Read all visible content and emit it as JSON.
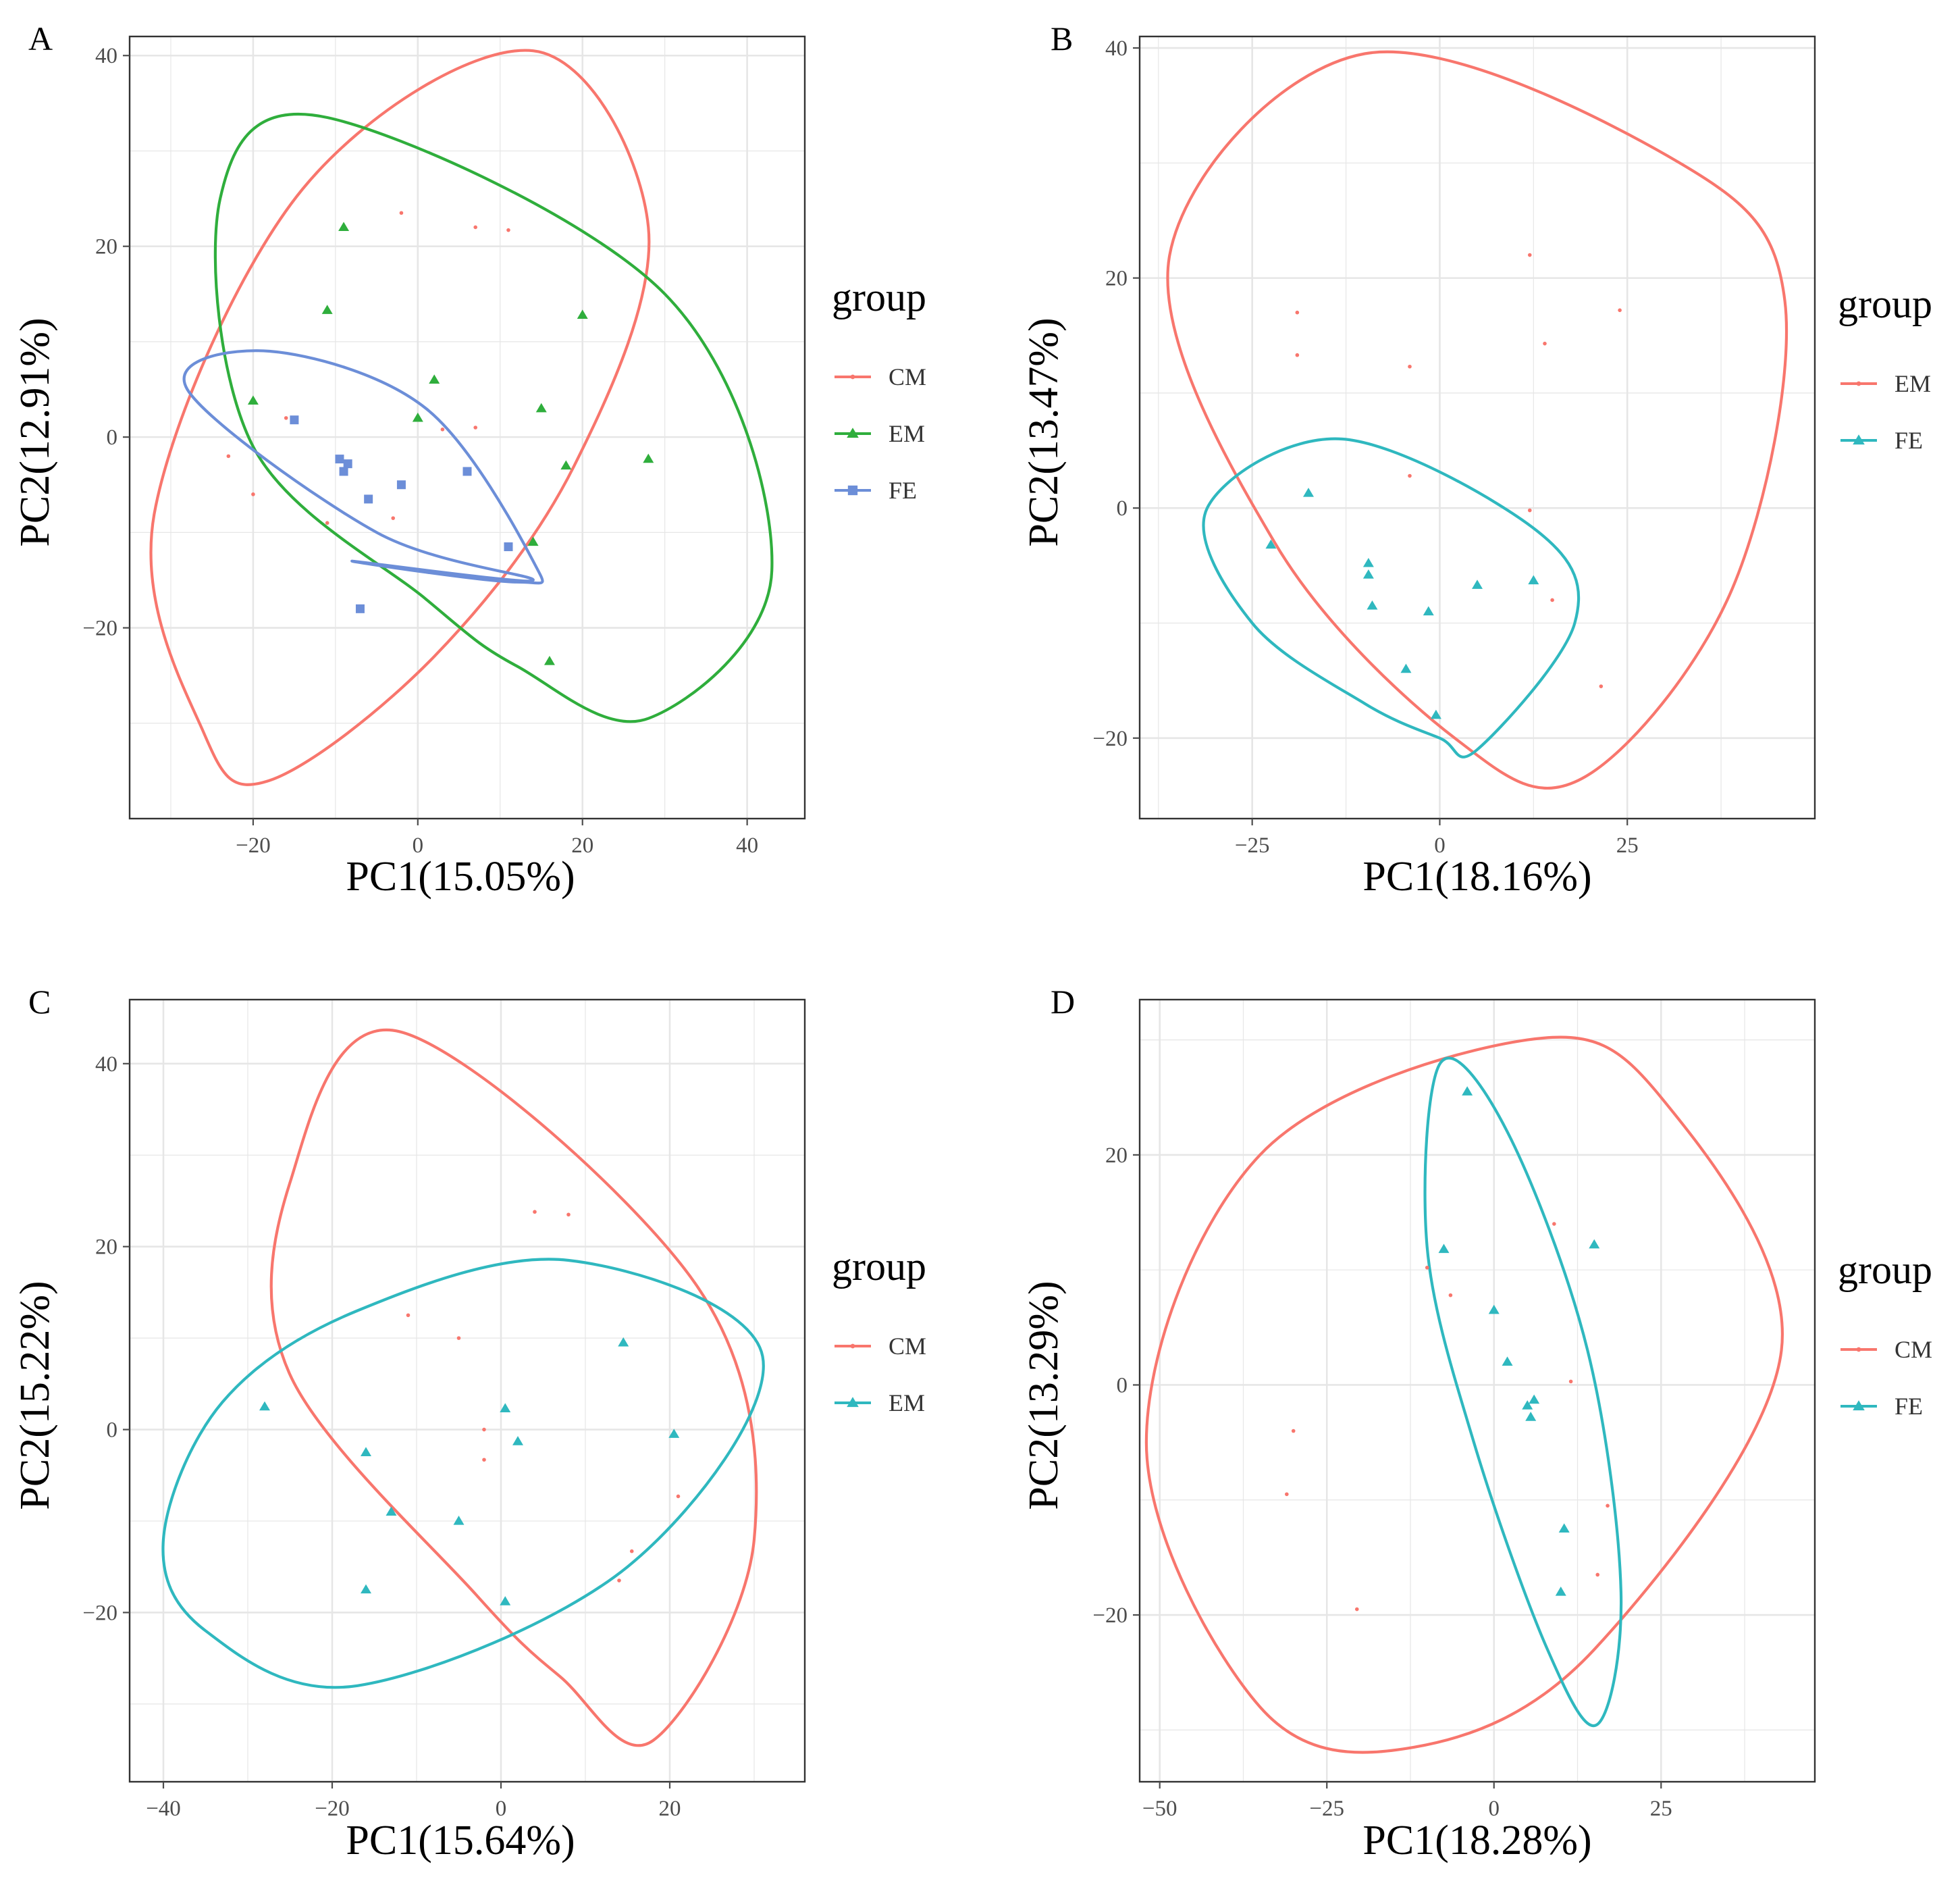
{
  "figure": {
    "colors": {
      "red": "#F8766D",
      "green": "#2FAE3C",
      "blue": "#6C8ED8",
      "teal": "#2FB8BF",
      "grid": "#E6E6E6",
      "frame": "#333333",
      "tick": "#4D4D4D"
    },
    "legend_title": "group"
  },
  "chart_data": [
    {
      "panel": "A",
      "type": "scatter",
      "xlabel": "PC1(15.05%)",
      "ylabel": "PC2(12.91%)",
      "xlim": [
        -35,
        47
      ],
      "ylim": [
        -40,
        42
      ],
      "xticks": [
        -20,
        0,
        20,
        40
      ],
      "yticks": [
        -20,
        0,
        20,
        40
      ],
      "xtick_labels": [
        "−20",
        "0",
        "20",
        "40"
      ],
      "ytick_labels": [
        "−20",
        "0",
        "20",
        "40"
      ],
      "legend": [
        {
          "name": "CM",
          "color": "red",
          "shape": "dot"
        },
        {
          "name": "EM",
          "color": "green",
          "shape": "triangle"
        },
        {
          "name": "FE",
          "color": "blue",
          "shape": "square"
        }
      ],
      "series": [
        {
          "name": "CM",
          "color": "red",
          "shape": "dot",
          "points": [
            [
              -2,
              23.5
            ],
            [
              7,
              22
            ],
            [
              11,
              21.7
            ],
            [
              -23,
              -2
            ],
            [
              -20,
              -6
            ],
            [
              3,
              0.8
            ],
            [
              7,
              1
            ],
            [
              -3,
              -8.5
            ],
            [
              -16,
              2
            ],
            [
              -11,
              -9
            ]
          ]
        },
        {
          "name": "EM",
          "color": "green",
          "shape": "triangle",
          "points": [
            [
              -9,
              22
            ],
            [
              -11,
              13.3
            ],
            [
              20,
              12.8
            ],
            [
              2,
              6
            ],
            [
              -20,
              3.8
            ],
            [
              15,
              3
            ],
            [
              0,
              2
            ],
            [
              18,
              -3
            ],
            [
              28,
              -2.3
            ],
            [
              14,
              -11
            ],
            [
              16,
              -23.5
            ]
          ]
        },
        {
          "name": "FE",
          "color": "blue",
          "shape": "square",
          "points": [
            [
              -15,
              1.8
            ],
            [
              -9.5,
              -2.3
            ],
            [
              -8.5,
              -2.8
            ],
            [
              -9,
              -3.6
            ],
            [
              6,
              -3.6
            ],
            [
              -2,
              -5
            ],
            [
              -6,
              -6.5
            ],
            [
              11,
              -11.5
            ],
            [
              -7,
              -18
            ]
          ]
        }
      ],
      "ellipses": [
        {
          "color": "red",
          "points": [
            [
              -18,
              -36
            ],
            [
              2,
              -23
            ],
            [
              19,
              -3
            ],
            [
              28,
              22
            ],
            [
              14,
              40.5
            ],
            [
              -14,
              26
            ],
            [
              -32,
              -8
            ],
            [
              -26,
              -31
            ]
          ]
        },
        {
          "color": "green",
          "points": [
            [
              28,
              -29.5
            ],
            [
              43,
              -14
            ],
            [
              30,
              15
            ],
            [
              -11,
              33.5
            ],
            [
              -24,
              25
            ],
            [
              -20,
              -1
            ],
            [
              1,
              -17
            ],
            [
              12,
              -24
            ]
          ]
        },
        {
          "color": "blue",
          "points": [
            [
              14,
              -15
            ],
            [
              -5,
              -10
            ],
            [
              -28,
              5
            ],
            [
              -18,
              9
            ],
            [
              1,
              3
            ],
            [
              14,
              -13
            ],
            [
              12,
              -15.2
            ],
            [
              -8,
              -13
            ]
          ]
        }
      ]
    },
    {
      "panel": "B",
      "type": "scatter",
      "xlabel": "PC1(18.16%)",
      "ylabel": "PC2(13.47%)",
      "xlim": [
        -40,
        50
      ],
      "ylim": [
        -27,
        41
      ],
      "xticks": [
        -25,
        0,
        25
      ],
      "yticks": [
        -20,
        0,
        20,
        40
      ],
      "xtick_labels": [
        "−25",
        "0",
        "25"
      ],
      "ytick_labels": [
        "−20",
        "0",
        "20",
        "40"
      ],
      "legend": [
        {
          "name": "EM",
          "color": "red",
          "shape": "dot"
        },
        {
          "name": "FE",
          "color": "teal",
          "shape": "triangle"
        }
      ],
      "series": [
        {
          "name": "EM",
          "color": "red",
          "shape": "dot",
          "points": [
            [
              12,
              22
            ],
            [
              -19,
              17
            ],
            [
              24,
              17.2
            ],
            [
              -19,
              13.3
            ],
            [
              14,
              14.3
            ],
            [
              -4,
              12.3
            ],
            [
              -4,
              2.8
            ],
            [
              12,
              -0.2
            ],
            [
              15,
              -8
            ],
            [
              21.5,
              -15.5
            ]
          ]
        },
        {
          "name": "FE",
          "color": "teal",
          "shape": "triangle",
          "points": [
            [
              -17.5,
              1.3
            ],
            [
              -22.5,
              -3.2
            ],
            [
              -9.5,
              -4.8
            ],
            [
              -9.5,
              -5.8
            ],
            [
              -9,
              -8.5
            ],
            [
              5,
              -6.7
            ],
            [
              12.5,
              -6.3
            ],
            [
              -1.5,
              -9
            ],
            [
              -4.5,
              -14
            ],
            [
              -0.5,
              -18
            ]
          ]
        }
      ],
      "ellipses": [
        {
          "color": "red",
          "points": [
            [
              19,
              -23.5
            ],
            [
              39,
              -7
            ],
            [
              46,
              18
            ],
            [
              32,
              30
            ],
            [
              -10,
              39.5
            ],
            [
              -36,
              22
            ],
            [
              -22,
              -3
            ],
            [
              2,
              -20
            ]
          ]
        },
        {
          "color": "teal",
          "points": [
            [
              5,
              -21
            ],
            [
              18,
              -10
            ],
            [
              13,
              -2
            ],
            [
              -13,
              6
            ],
            [
              -31,
              0
            ],
            [
              -25,
              -10
            ],
            [
              -10,
              -17
            ],
            [
              0,
              -20
            ]
          ]
        }
      ]
    },
    {
      "panel": "C",
      "type": "scatter",
      "xlabel": "PC1(15.64%)",
      "ylabel": "PC2(15.22%)",
      "xlim": [
        -44,
        36
      ],
      "ylim": [
        -38.5,
        47
      ],
      "xticks": [
        -40,
        -20,
        0,
        20
      ],
      "yticks": [
        -20,
        0,
        20,
        40
      ],
      "xtick_labels": [
        "−40",
        "−20",
        "0",
        "20"
      ],
      "ytick_labels": [
        "−20",
        "0",
        "20",
        "40"
      ],
      "legend": [
        {
          "name": "CM",
          "color": "red",
          "shape": "dot"
        },
        {
          "name": "EM",
          "color": "teal",
          "shape": "triangle"
        }
      ],
      "series": [
        {
          "name": "CM",
          "color": "red",
          "shape": "dot",
          "points": [
            [
              4,
              23.8
            ],
            [
              8,
              23.5
            ],
            [
              -11,
              12.5
            ],
            [
              -5,
              10
            ],
            [
              -2,
              0
            ],
            [
              -2,
              -3.3
            ],
            [
              21,
              -7.3
            ],
            [
              15.5,
              -13.3
            ],
            [
              14,
              -16.5
            ]
          ]
        },
        {
          "name": "EM",
          "color": "teal",
          "shape": "triangle",
          "points": [
            [
              -28,
              2.5
            ],
            [
              -16,
              -2.5
            ],
            [
              14.5,
              9.5
            ],
            [
              0.5,
              2.3
            ],
            [
              2,
              -1.3
            ],
            [
              20.5,
              -0.5
            ],
            [
              -13,
              -9
            ],
            [
              -5,
              -10
            ],
            [
              -16,
              -17.5
            ],
            [
              0.5,
              -18.8
            ]
          ]
        }
      ],
      "ellipses": [
        {
          "color": "red",
          "points": [
            [
              18,
              -34
            ],
            [
              30,
              -12
            ],
            [
              23,
              16
            ],
            [
              -12,
              43.5
            ],
            [
              -25,
              27
            ],
            [
              -25,
              6
            ],
            [
              -3,
              -18
            ],
            [
              7,
              -27
            ]
          ]
        },
        {
          "color": "teal",
          "points": [
            [
              -17,
              -28
            ],
            [
              -35,
              -22
            ],
            [
              -40,
              -12
            ],
            [
              -33,
              3
            ],
            [
              -17,
              13
            ],
            [
              8,
              18.5
            ],
            [
              31,
              8
            ],
            [
              15,
              -15
            ]
          ]
        }
      ]
    },
    {
      "panel": "D",
      "type": "scatter",
      "xlabel": "PC1(18.28%)",
      "ylabel": "PC2(13.29%)",
      "xlim": [
        -53,
        48
      ],
      "ylim": [
        -34.5,
        33.5
      ],
      "xticks": [
        -50,
        -25,
        0,
        25
      ],
      "yticks": [
        -20,
        0,
        20
      ],
      "xtick_labels": [
        "−50",
        "−25",
        "0",
        "25"
      ],
      "ytick_labels": [
        "−20",
        "0",
        "20"
      ],
      "legend": [
        {
          "name": "CM",
          "color": "red",
          "shape": "dot"
        },
        {
          "name": "FE",
          "color": "teal",
          "shape": "triangle"
        }
      ],
      "series": [
        {
          "name": "CM",
          "color": "red",
          "shape": "dot",
          "points": [
            [
              9,
              14
            ],
            [
              -10,
              10.2
            ],
            [
              -6.5,
              7.8
            ],
            [
              11.5,
              0.3
            ],
            [
              -30,
              -4
            ],
            [
              -31,
              -9.5
            ],
            [
              17,
              -10.5
            ],
            [
              15.5,
              -16.5
            ],
            [
              -20.5,
              -19.5
            ]
          ]
        },
        {
          "name": "FE",
          "color": "teal",
          "shape": "triangle",
          "points": [
            [
              -4,
              25.5
            ],
            [
              -7.5,
              11.8
            ],
            [
              15,
              12.2
            ],
            [
              0,
              6.5
            ],
            [
              2,
              2
            ],
            [
              6,
              -1.3
            ],
            [
              5,
              -1.8
            ],
            [
              5.5,
              -2.8
            ],
            [
              10.5,
              -12.5
            ],
            [
              10,
              -18
            ]
          ]
        }
      ],
      "ellipses": [
        {
          "color": "red",
          "points": [
            [
              -12,
              -31.5
            ],
            [
              15,
              -23
            ],
            [
              43,
              3
            ],
            [
              25,
              25
            ],
            [
              5,
              30
            ],
            [
              -35,
              20
            ],
            [
              -52,
              -5
            ],
            [
              -35,
              -28
            ]
          ]
        },
        {
          "color": "teal",
          "points": [
            [
              15.5,
              -29.5
            ],
            [
              19,
              -18
            ],
            [
              14,
              3
            ],
            [
              2,
              22
            ],
            [
              -8,
              28
            ],
            [
              -10,
              12
            ],
            [
              -3,
              -5
            ],
            [
              8,
              -23
            ]
          ]
        }
      ]
    }
  ]
}
